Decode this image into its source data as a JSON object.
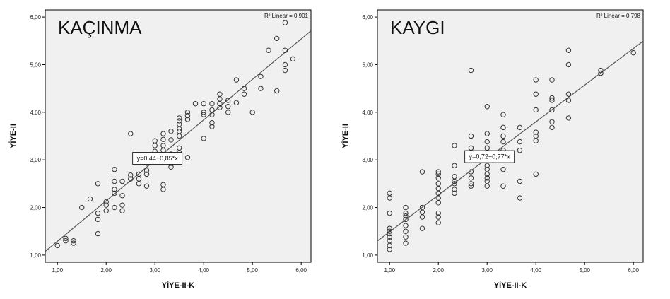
{
  "chart_data": [
    {
      "type": "scatter",
      "title": "KAÇINMA",
      "xlabel": "YİYE-II-K",
      "ylabel": "YİYE-II",
      "xlim": [
        0.75,
        6.2
      ],
      "ylim": [
        0.85,
        6.15
      ],
      "xticks": [
        "1,00",
        "2,00",
        "3,00",
        "4,00",
        "5,00",
        "6,00"
      ],
      "yticks": [
        "1,00",
        "2,00",
        "3,00",
        "4,00",
        "5,00",
        "6,00"
      ],
      "r2_label": "R² Linear = 0,901",
      "equation": "y=0,44+0,85*x",
      "fit": {
        "intercept": 0.44,
        "slope": 0.85
      },
      "grid": false,
      "points": [
        [
          1.0,
          1.2
        ],
        [
          1.17,
          1.3
        ],
        [
          1.17,
          1.35
        ],
        [
          1.33,
          1.25
        ],
        [
          1.33,
          1.3
        ],
        [
          1.5,
          2.0
        ],
        [
          1.67,
          2.18
        ],
        [
          1.83,
          1.45
        ],
        [
          1.83,
          1.75
        ],
        [
          1.83,
          1.88
        ],
        [
          1.83,
          2.5
        ],
        [
          2.0,
          1.93
        ],
        [
          2.0,
          2.05
        ],
        [
          2.0,
          2.12
        ],
        [
          2.17,
          2.0
        ],
        [
          2.17,
          2.3
        ],
        [
          2.17,
          2.38
        ],
        [
          2.17,
          2.55
        ],
        [
          2.17,
          2.8
        ],
        [
          2.33,
          1.93
        ],
        [
          2.33,
          2.05
        ],
        [
          2.33,
          2.25
        ],
        [
          2.33,
          2.55
        ],
        [
          2.5,
          2.6
        ],
        [
          2.5,
          2.68
        ],
        [
          2.5,
          3.55
        ],
        [
          2.67,
          2.5
        ],
        [
          2.67,
          2.6
        ],
        [
          2.67,
          2.7
        ],
        [
          2.83,
          2.45
        ],
        [
          2.83,
          2.7
        ],
        [
          2.83,
          2.78
        ],
        [
          2.83,
          2.93
        ],
        [
          3.0,
          3.05
        ],
        [
          3.0,
          3.1
        ],
        [
          3.0,
          3.18
        ],
        [
          3.0,
          3.3
        ],
        [
          3.0,
          3.4
        ],
        [
          3.17,
          2.38
        ],
        [
          3.17,
          2.48
        ],
        [
          3.17,
          3.2
        ],
        [
          3.17,
          3.3
        ],
        [
          3.17,
          3.43
        ],
        [
          3.17,
          3.55
        ],
        [
          3.33,
          2.85
        ],
        [
          3.33,
          2.93
        ],
        [
          3.33,
          3.0
        ],
        [
          3.33,
          3.05
        ],
        [
          3.33,
          3.12
        ],
        [
          3.33,
          3.42
        ],
        [
          3.33,
          3.6
        ],
        [
          3.5,
          3.15
        ],
        [
          3.5,
          3.25
        ],
        [
          3.5,
          3.5
        ],
        [
          3.5,
          3.6
        ],
        [
          3.5,
          3.65
        ],
        [
          3.5,
          3.75
        ],
        [
          3.5,
          3.82
        ],
        [
          3.5,
          3.88
        ],
        [
          3.67,
          3.05
        ],
        [
          3.67,
          3.85
        ],
        [
          3.67,
          3.93
        ],
        [
          3.67,
          4.0
        ],
        [
          3.83,
          4.18
        ],
        [
          4.0,
          3.95
        ],
        [
          4.0,
          4.0
        ],
        [
          4.0,
          4.18
        ],
        [
          4.0,
          3.45
        ],
        [
          4.17,
          3.7
        ],
        [
          4.17,
          3.78
        ],
        [
          4.17,
          3.95
        ],
        [
          4.17,
          4.05
        ],
        [
          4.17,
          4.18
        ],
        [
          4.33,
          4.1
        ],
        [
          4.33,
          4.18
        ],
        [
          4.33,
          4.28
        ],
        [
          4.33,
          4.38
        ],
        [
          4.5,
          4.0
        ],
        [
          4.5,
          4.12
        ],
        [
          4.5,
          4.25
        ],
        [
          4.67,
          4.2
        ],
        [
          4.67,
          4.68
        ],
        [
          4.83,
          4.38
        ],
        [
          4.83,
          4.5
        ],
        [
          5.0,
          4.0
        ],
        [
          5.17,
          4.5
        ],
        [
          5.17,
          4.75
        ],
        [
          5.33,
          5.3
        ],
        [
          5.5,
          4.45
        ],
        [
          5.5,
          5.55
        ],
        [
          5.67,
          4.88
        ],
        [
          5.67,
          5.0
        ],
        [
          5.67,
          5.3
        ],
        [
          5.67,
          5.88
        ],
        [
          5.83,
          5.12
        ]
      ]
    },
    {
      "type": "scatter",
      "title": "KAYGI",
      "xlabel": "YİYE-II-K",
      "ylabel": "YİYE-II",
      "xlim": [
        0.75,
        6.2
      ],
      "ylim": [
        0.85,
        6.15
      ],
      "xticks": [
        "1,00",
        "2,00",
        "3,00",
        "4,00",
        "5,00",
        "6,00"
      ],
      "yticks": [
        "1,00",
        "2,00",
        "3,00",
        "4,00",
        "5,00",
        "6,00"
      ],
      "r2_label": "R² Linear = 0,798",
      "equation": "y=0,72+0,77*x",
      "fit": {
        "intercept": 0.72,
        "slope": 0.77
      },
      "grid": false,
      "points": [
        [
          1.0,
          1.12
        ],
        [
          1.0,
          1.2
        ],
        [
          1.0,
          1.3
        ],
        [
          1.0,
          1.38
        ],
        [
          1.0,
          1.45
        ],
        [
          1.0,
          1.5
        ],
        [
          1.0,
          1.56
        ],
        [
          1.0,
          1.88
        ],
        [
          1.0,
          2.2
        ],
        [
          1.0,
          2.3
        ],
        [
          1.33,
          1.25
        ],
        [
          1.33,
          1.38
        ],
        [
          1.33,
          1.5
        ],
        [
          1.33,
          1.62
        ],
        [
          1.33,
          1.75
        ],
        [
          1.33,
          1.82
        ],
        [
          1.33,
          1.88
        ],
        [
          1.33,
          2.0
        ],
        [
          1.67,
          1.56
        ],
        [
          1.67,
          1.8
        ],
        [
          1.67,
          1.9
        ],
        [
          1.67,
          2.0
        ],
        [
          1.67,
          2.75
        ],
        [
          2.0,
          1.68
        ],
        [
          2.0,
          1.8
        ],
        [
          2.0,
          1.88
        ],
        [
          2.0,
          2.1
        ],
        [
          2.0,
          2.2
        ],
        [
          2.0,
          2.3
        ],
        [
          2.0,
          2.4
        ],
        [
          2.0,
          2.5
        ],
        [
          2.0,
          2.62
        ],
        [
          2.0,
          2.7
        ],
        [
          2.0,
          2.75
        ],
        [
          2.33,
          2.3
        ],
        [
          2.33,
          2.38
        ],
        [
          2.33,
          2.5
        ],
        [
          2.33,
          2.55
        ],
        [
          2.33,
          2.65
        ],
        [
          2.33,
          2.88
        ],
        [
          2.33,
          3.3
        ],
        [
          2.67,
          2.45
        ],
        [
          2.67,
          2.5
        ],
        [
          2.67,
          2.62
        ],
        [
          2.67,
          2.75
        ],
        [
          2.67,
          3.0
        ],
        [
          2.67,
          3.25
        ],
        [
          2.67,
          3.5
        ],
        [
          2.67,
          4.88
        ],
        [
          3.0,
          2.45
        ],
        [
          3.0,
          2.55
        ],
        [
          3.0,
          2.62
        ],
        [
          3.0,
          2.7
        ],
        [
          3.0,
          2.8
        ],
        [
          3.0,
          2.88
        ],
        [
          3.0,
          3.0
        ],
        [
          3.0,
          3.25
        ],
        [
          3.0,
          3.38
        ],
        [
          3.0,
          3.55
        ],
        [
          3.0,
          4.12
        ],
        [
          3.33,
          2.45
        ],
        [
          3.33,
          2.8
        ],
        [
          3.33,
          3.0
        ],
        [
          3.33,
          3.2
        ],
        [
          3.33,
          3.38
        ],
        [
          3.33,
          3.5
        ],
        [
          3.33,
          3.68
        ],
        [
          3.33,
          3.95
        ],
        [
          3.67,
          2.2
        ],
        [
          3.67,
          2.55
        ],
        [
          3.67,
          3.2
        ],
        [
          3.67,
          3.38
        ],
        [
          3.67,
          3.68
        ],
        [
          4.0,
          2.7
        ],
        [
          4.0,
          3.4
        ],
        [
          4.0,
          3.5
        ],
        [
          4.0,
          3.58
        ],
        [
          4.0,
          4.05
        ],
        [
          4.0,
          4.38
        ],
        [
          4.0,
          4.68
        ],
        [
          4.33,
          3.68
        ],
        [
          4.33,
          3.8
        ],
        [
          4.33,
          4.05
        ],
        [
          4.33,
          4.25
        ],
        [
          4.33,
          4.3
        ],
        [
          4.33,
          4.68
        ],
        [
          4.67,
          3.88
        ],
        [
          4.67,
          4.25
        ],
        [
          4.67,
          4.38
        ],
        [
          4.67,
          5.0
        ],
        [
          4.67,
          5.3
        ],
        [
          5.33,
          4.82
        ],
        [
          5.33,
          4.88
        ],
        [
          6.0,
          5.25
        ]
      ]
    }
  ]
}
